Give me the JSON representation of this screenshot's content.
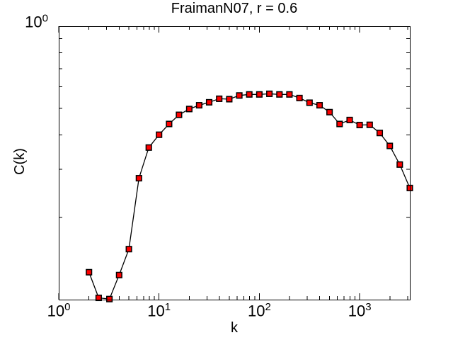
{
  "figure": {
    "background": "#ffffff"
  },
  "chart_data": {
    "type": "line",
    "title": "FraimanN07, r = 0.6",
    "xlabel": "k",
    "ylabel": "C(k)",
    "xscale": "log",
    "yscale": "log",
    "xlim": [
      1,
      3162.3
    ],
    "ylim": [
      0.1,
      1.0
    ],
    "grid": false,
    "legend": false,
    "x_tick_labels": [
      "10^0",
      "10^1",
      "10^2",
      "10^3"
    ],
    "y_tick_labels": [
      "10^0"
    ],
    "x_major_tick_exponents": [
      0,
      1,
      2,
      3
    ],
    "y_major_tick_exponents": [
      0
    ],
    "style": {
      "line_color": "#000000",
      "marker_shape": "square",
      "marker_fill": "#ff0000",
      "marker_edge": "#000000",
      "axis_color": "#000000",
      "background": "#ffffff"
    },
    "series": [
      {
        "name": "C(k)",
        "x": [
          2,
          2.5,
          3.2,
          4,
          5,
          6.3,
          7.9,
          10,
          12.6,
          15.8,
          20,
          25.1,
          31.6,
          39.8,
          50.1,
          63.1,
          79.4,
          100,
          125.9,
          158.5,
          199.5,
          251.2,
          316.2,
          398.1,
          501.2,
          631,
          794.3,
          1000,
          1258.9,
          1584.9,
          1995.3,
          2511.9,
          3162.3
        ],
        "y": [
          0.126,
          0.1015,
          0.1005,
          0.123,
          0.153,
          0.278,
          0.36,
          0.401,
          0.439,
          0.474,
          0.498,
          0.514,
          0.527,
          0.543,
          0.541,
          0.558,
          0.563,
          0.563,
          0.566,
          0.563,
          0.563,
          0.546,
          0.525,
          0.514,
          0.485,
          0.439,
          0.454,
          0.435,
          0.436,
          0.407,
          0.365,
          0.312,
          0.256
        ]
      }
    ]
  }
}
